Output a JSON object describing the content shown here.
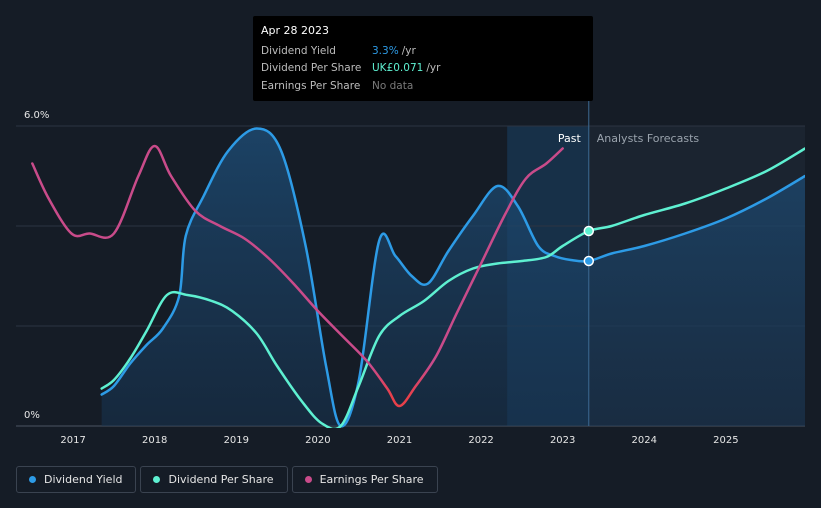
{
  "tooltip": {
    "date": "Apr 28 2023",
    "rows": [
      {
        "label": "Dividend Yield",
        "value": "3.3%",
        "unit": "/yr",
        "color": "#2d9be6"
      },
      {
        "label": "Dividend Per Share",
        "value": "UK£0.071",
        "unit": "/yr",
        "color": "#5ef0d1"
      },
      {
        "label": "Earnings Per Share",
        "value": "No data",
        "unit": "",
        "color": "#7a7a7a"
      }
    ]
  },
  "legend": [
    {
      "label": "Dividend Yield",
      "color": "#2d9be6"
    },
    {
      "label": "Dividend Per Share",
      "color": "#5ef0d1"
    },
    {
      "label": "Earnings Per Share",
      "color": "#c94b8a"
    }
  ],
  "chart_data": {
    "type": "line",
    "x_range": [
      2016.3,
      2025.97
    ],
    "y_range": [
      0,
      6.0
    ],
    "y_tick_labels": [
      "6.0%",
      "0%"
    ],
    "x_ticks": [
      2017,
      2018,
      2019,
      2020,
      2021,
      2022,
      2023,
      2024,
      2025
    ],
    "past_label": "Past",
    "forecast_label": "Analysts Forecasts",
    "divider_x": 2023.32,
    "past_band_start": 2022.32,
    "series": [
      {
        "name": "Dividend Yield",
        "color": "#2d9be6",
        "filled": true,
        "points": [
          [
            2017.35,
            0.63
          ],
          [
            2017.5,
            0.8
          ],
          [
            2017.7,
            1.25
          ],
          [
            2017.9,
            1.62
          ],
          [
            2018.1,
            1.95
          ],
          [
            2018.3,
            2.6
          ],
          [
            2018.38,
            3.8
          ],
          [
            2018.6,
            4.6
          ],
          [
            2018.9,
            5.5
          ],
          [
            2019.25,
            5.95
          ],
          [
            2019.55,
            5.5
          ],
          [
            2019.85,
            3.6
          ],
          [
            2020.1,
            1.2
          ],
          [
            2020.28,
            0.0
          ],
          [
            2020.5,
            0.9
          ],
          [
            2020.75,
            3.7
          ],
          [
            2020.95,
            3.4
          ],
          [
            2021.15,
            3.0
          ],
          [
            2021.35,
            2.85
          ],
          [
            2021.6,
            3.5
          ],
          [
            2021.9,
            4.2
          ],
          [
            2022.2,
            4.8
          ],
          [
            2022.45,
            4.4
          ],
          [
            2022.7,
            3.6
          ],
          [
            2022.9,
            3.4
          ],
          [
            2023.1,
            3.32
          ],
          [
            2023.32,
            3.3
          ],
          [
            2023.6,
            3.45
          ],
          [
            2024.0,
            3.6
          ],
          [
            2024.5,
            3.85
          ],
          [
            2025.0,
            4.15
          ],
          [
            2025.5,
            4.55
          ],
          [
            2025.97,
            5.0
          ]
        ]
      },
      {
        "name": "Dividend Per Share",
        "color": "#5ef0d1",
        "filled": false,
        "points": [
          [
            2017.35,
            0.75
          ],
          [
            2017.5,
            0.92
          ],
          [
            2017.7,
            1.35
          ],
          [
            2017.9,
            1.9
          ],
          [
            2018.15,
            2.62
          ],
          [
            2018.4,
            2.62
          ],
          [
            2018.7,
            2.5
          ],
          [
            2018.95,
            2.3
          ],
          [
            2019.25,
            1.85
          ],
          [
            2019.5,
            1.2
          ],
          [
            2019.8,
            0.5
          ],
          [
            2020.05,
            0.05
          ],
          [
            2020.28,
            0.0
          ],
          [
            2020.5,
            0.8
          ],
          [
            2020.75,
            1.8
          ],
          [
            2021.0,
            2.2
          ],
          [
            2021.3,
            2.5
          ],
          [
            2021.6,
            2.9
          ],
          [
            2021.9,
            3.15
          ],
          [
            2022.2,
            3.25
          ],
          [
            2022.5,
            3.3
          ],
          [
            2022.8,
            3.38
          ],
          [
            2023.0,
            3.6
          ],
          [
            2023.32,
            3.9
          ],
          [
            2023.6,
            4.0
          ],
          [
            2024.0,
            4.22
          ],
          [
            2024.5,
            4.45
          ],
          [
            2025.0,
            4.75
          ],
          [
            2025.5,
            5.1
          ],
          [
            2025.97,
            5.55
          ]
        ]
      },
      {
        "name": "Earnings Per Share",
        "color": "#c94b8a",
        "color_low": "#e8404a",
        "filled": false,
        "points": [
          [
            2016.5,
            5.25
          ],
          [
            2016.7,
            4.55
          ],
          [
            2016.98,
            3.85
          ],
          [
            2017.2,
            3.85
          ],
          [
            2017.5,
            3.85
          ],
          [
            2017.8,
            5.0
          ],
          [
            2018.0,
            5.6
          ],
          [
            2018.2,
            5.0
          ],
          [
            2018.5,
            4.3
          ],
          [
            2018.8,
            4.0
          ],
          [
            2019.1,
            3.75
          ],
          [
            2019.4,
            3.35
          ],
          [
            2019.7,
            2.85
          ],
          [
            2020.0,
            2.3
          ],
          [
            2020.3,
            1.8
          ],
          [
            2020.6,
            1.3
          ],
          [
            2020.85,
            0.75
          ],
          [
            2021.0,
            0.4
          ],
          [
            2021.2,
            0.8
          ],
          [
            2021.45,
            1.4
          ],
          [
            2021.7,
            2.25
          ],
          [
            2022.0,
            3.25
          ],
          [
            2022.3,
            4.25
          ],
          [
            2022.55,
            4.95
          ],
          [
            2022.8,
            5.25
          ],
          [
            2023.0,
            5.55
          ]
        ]
      }
    ],
    "markers": [
      {
        "series": "Dividend Per Share",
        "x": 2023.32,
        "y": 3.9
      },
      {
        "series": "Dividend Yield",
        "x": 2023.32,
        "y": 3.3
      }
    ]
  }
}
